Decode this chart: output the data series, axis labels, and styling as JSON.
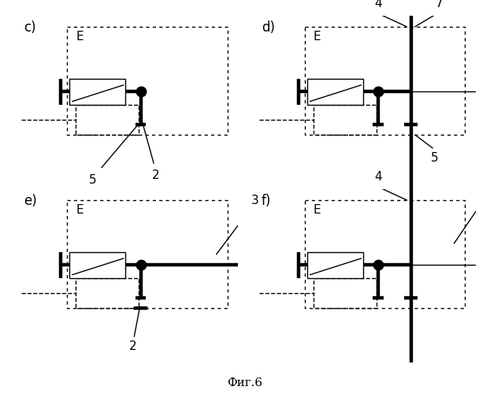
{
  "title": "Фиг.6",
  "background": "#ffffff",
  "panels": [
    {
      "label": "c)",
      "type": "c"
    },
    {
      "label": "d)",
      "type": "d"
    },
    {
      "label": "e)",
      "type": "e"
    },
    {
      "label": "f)",
      "type": "f"
    }
  ]
}
